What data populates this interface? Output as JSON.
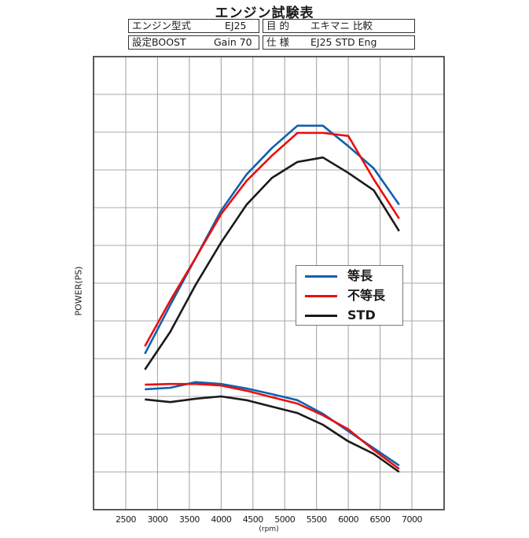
{
  "header": {
    "title": "エンジン試験表",
    "rows": [
      {
        "left_key": "エンジン型式",
        "left_value": "EJ25",
        "right_key": "目 的",
        "right_value": "エキマニ 比較"
      },
      {
        "left_key": "設定BOOST",
        "left_value": "Gain 70",
        "right_key": "仕 様",
        "right_value": "EJ25 STD Eng"
      }
    ]
  },
  "legend": {
    "items": [
      {
        "label": "等長",
        "color": "#1060b0"
      },
      {
        "label": "不等長",
        "color": "#e81010"
      },
      {
        "label": "STD",
        "color": "#1a1a1a"
      }
    ]
  },
  "axes": {
    "xlabel": "(rpm)",
    "ylabel": "POWER(PS)",
    "xticks": [
      "2500",
      "3000",
      "3500",
      "4000",
      "4500",
      "5000",
      "5500",
      "6000",
      "6500",
      "7000"
    ]
  },
  "chart_data": {
    "type": "line",
    "title": "エンジン試験表",
    "xlabel": "(rpm)",
    "ylabel": "POWER(PS)",
    "xlim": [
      2000,
      7500
    ],
    "ylim": [
      0,
      12
    ],
    "y_units_note": "no numeric y ticks shown; values in grid-division units (0 = bottom, 12 = top)",
    "grid": true,
    "legend_position": "center-right",
    "x": [
      2800,
      3200,
      3600,
      4000,
      4400,
      4800,
      5200,
      5600,
      6000,
      6400,
      6800
    ],
    "series": [
      {
        "name": "等長",
        "group": "upper",
        "color": "#1060b0",
        "values": [
          4.13,
          5.42,
          6.67,
          7.92,
          8.88,
          9.58,
          10.17,
          10.17,
          9.63,
          9.04,
          8.08
        ]
      },
      {
        "name": "不等長",
        "group": "upper",
        "color": "#e81010",
        "values": [
          4.33,
          5.54,
          6.67,
          7.83,
          8.71,
          9.38,
          9.98,
          9.98,
          9.9,
          8.75,
          7.71
        ]
      },
      {
        "name": "STD",
        "group": "upper",
        "color": "#1a1a1a",
        "values": [
          3.71,
          4.71,
          5.96,
          7.08,
          8.08,
          8.79,
          9.21,
          9.33,
          8.92,
          8.46,
          7.38
        ]
      },
      {
        "name": "等長",
        "group": "lower",
        "color": "#1060b0",
        "values": [
          3.19,
          3.23,
          3.38,
          3.33,
          3.21,
          3.06,
          2.9,
          2.54,
          2.08,
          1.63,
          1.17
        ]
      },
      {
        "name": "不等長",
        "group": "lower",
        "color": "#e81010",
        "values": [
          3.31,
          3.33,
          3.33,
          3.29,
          3.15,
          2.98,
          2.81,
          2.5,
          2.13,
          1.58,
          1.08
        ]
      },
      {
        "name": "STD",
        "group": "lower",
        "color": "#1a1a1a",
        "values": [
          2.92,
          2.85,
          2.94,
          3.0,
          2.9,
          2.73,
          2.56,
          2.25,
          1.81,
          1.48,
          1.0
        ]
      }
    ]
  }
}
